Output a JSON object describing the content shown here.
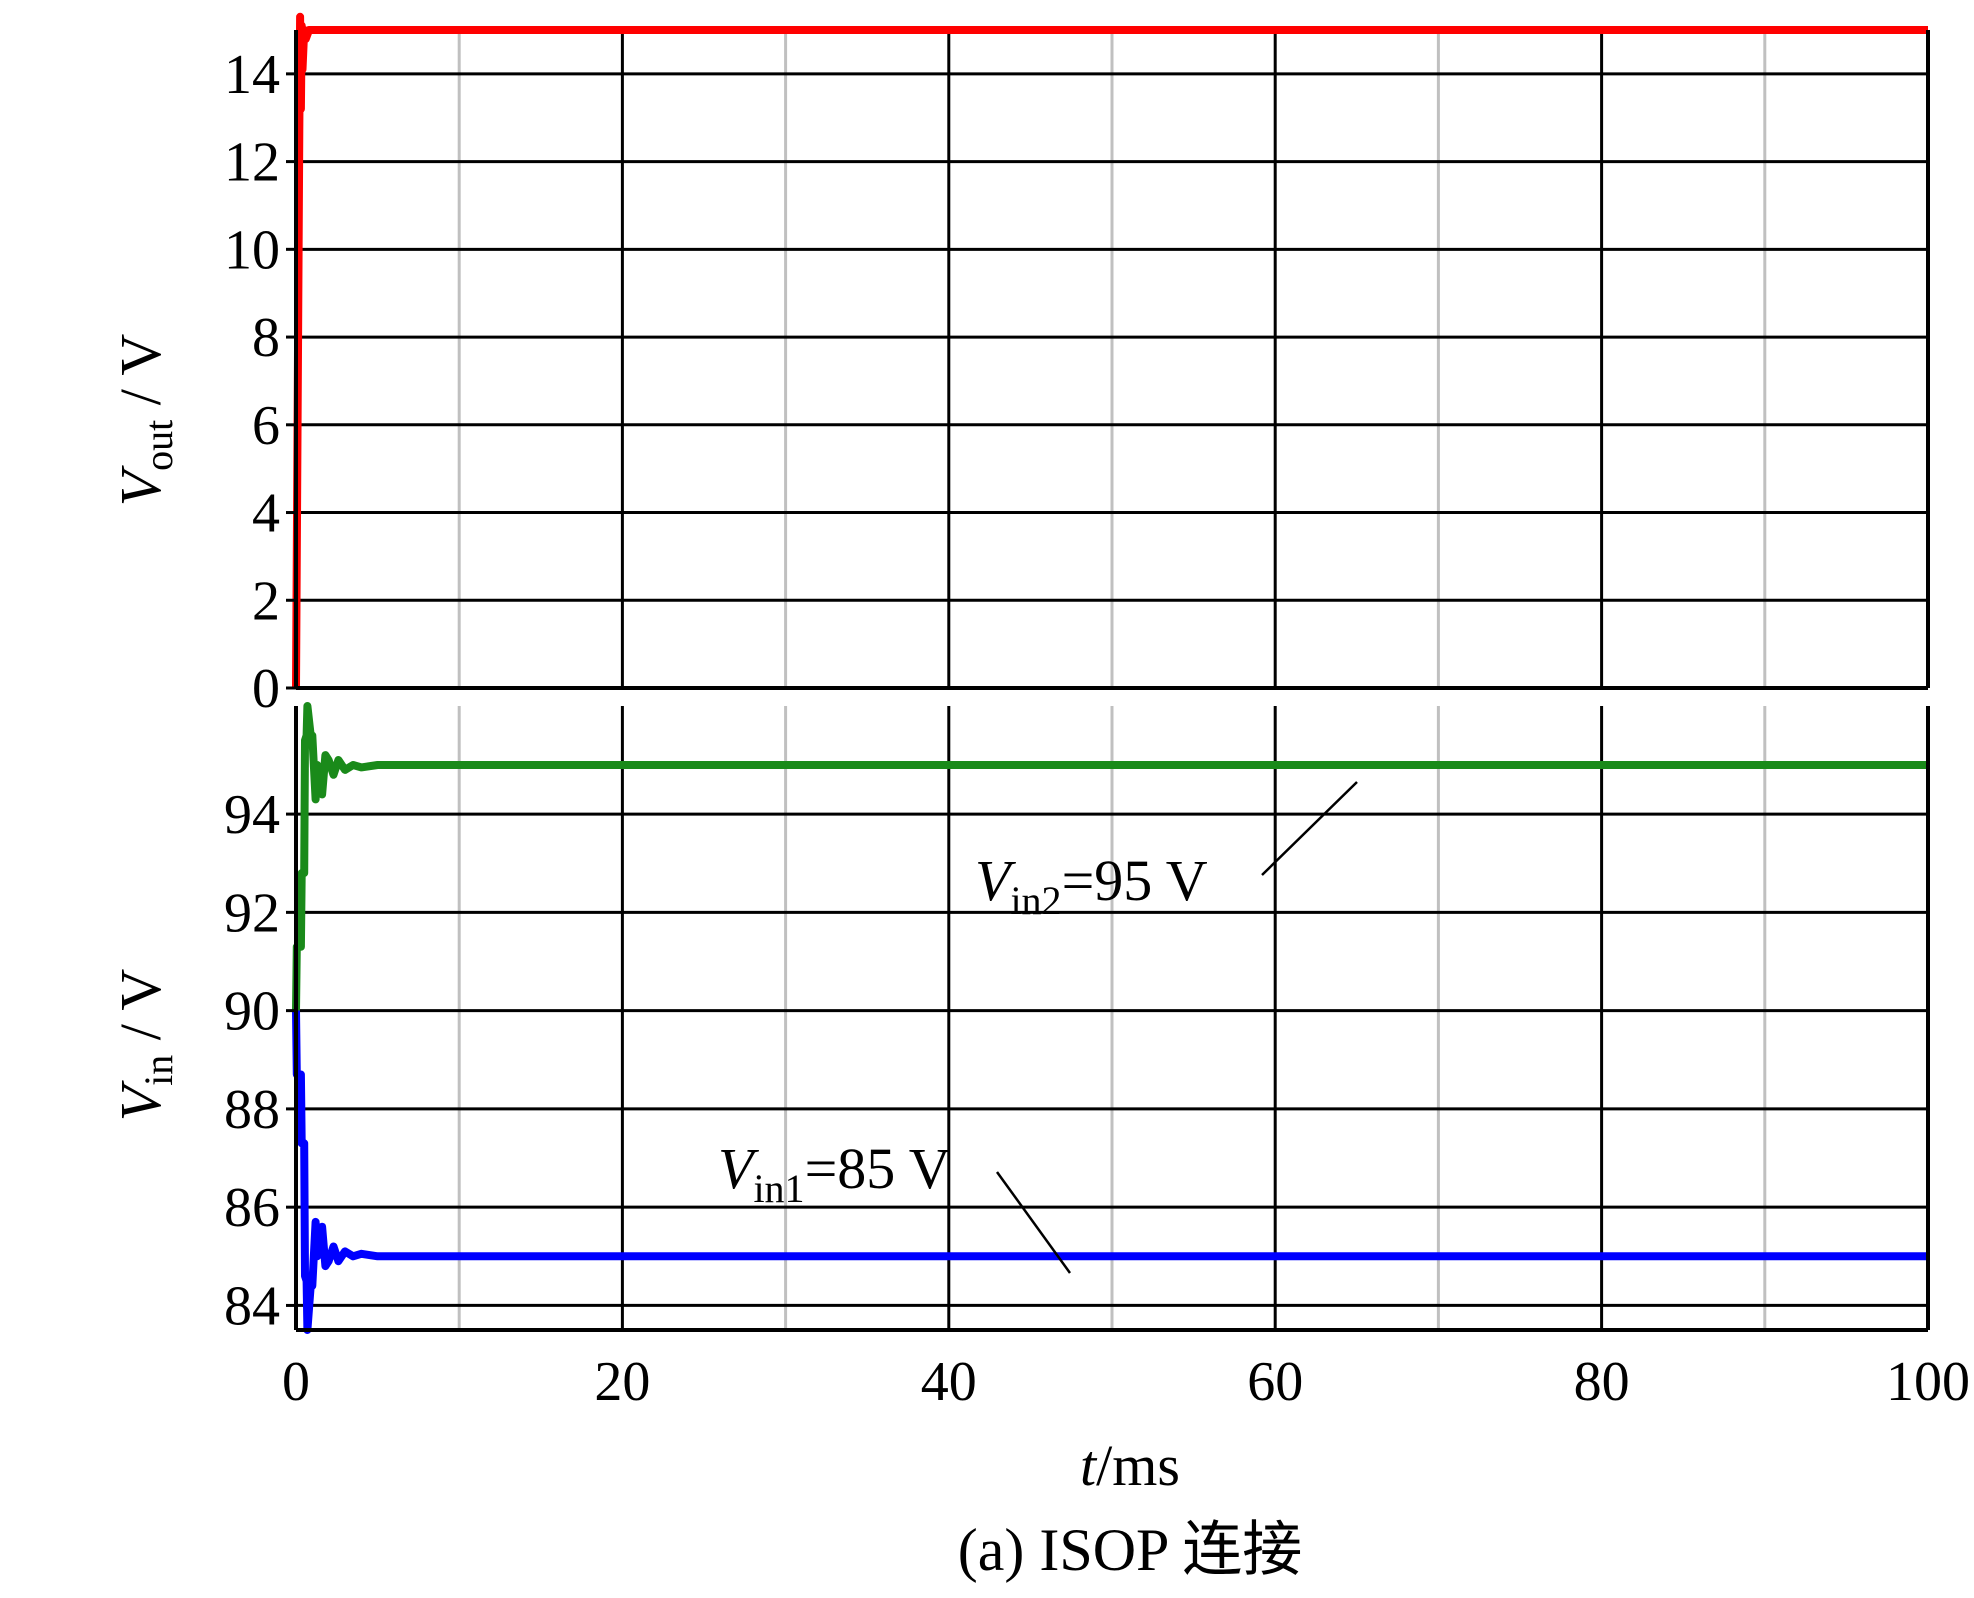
{
  "chart_data": [
    {
      "type": "line",
      "panel": "top",
      "ylabel": {
        "main": "V",
        "sub": "out",
        "unit": " / V"
      },
      "ylim": [
        0,
        15
      ],
      "yticks": [
        0,
        2,
        4,
        6,
        8,
        10,
        12,
        14
      ],
      "xlim": [
        0,
        100
      ],
      "xticks": [
        0,
        20,
        40,
        60,
        80,
        100
      ],
      "grid": true,
      "series": [
        {
          "color": "#ff0000",
          "x": [
            0,
            0.2,
            0.25,
            0.3,
            0.35,
            0.4,
            0.5,
            0.6,
            0.8,
            1.0,
            2,
            100
          ],
          "y": [
            0,
            12.7,
            15.3,
            13.2,
            15.1,
            14.1,
            15.0,
            14.8,
            15.0,
            15.0,
            15.0,
            15.0
          ]
        }
      ]
    },
    {
      "type": "line",
      "panel": "bottom",
      "ylabel": {
        "main": "V",
        "sub": "in",
        "unit": " / V"
      },
      "ylim": [
        83.5,
        96.2
      ],
      "yticks": [
        84,
        86,
        88,
        90,
        92,
        94
      ],
      "xlim": [
        0,
        100
      ],
      "xticks": [
        0,
        20,
        40,
        60,
        80,
        100
      ],
      "xlabel": {
        "main": "t",
        "unit": "/ms"
      },
      "grid": true,
      "series": [
        {
          "name": "Vin2",
          "color": "#1a8a1a",
          "x": [
            0,
            0.05,
            0.3,
            0.35,
            0.5,
            0.55,
            0.65,
            0.7,
            0.9,
            1.0,
            1.2,
            1.3,
            1.6,
            1.8,
            2.0,
            2.3,
            2.6,
            3.0,
            3.5,
            4,
            5,
            6,
            100
          ],
          "y": [
            90.0,
            91.3,
            91.3,
            92.8,
            92.8,
            95.5,
            95.6,
            96.2,
            95.6,
            95.6,
            94.3,
            95.0,
            94.4,
            95.2,
            95.1,
            94.8,
            95.1,
            94.9,
            95.0,
            94.95,
            95.0,
            95.0,
            95.0
          ]
        },
        {
          "name": "Vin1",
          "color": "#0000ff",
          "x": [
            0,
            0.05,
            0.3,
            0.35,
            0.5,
            0.55,
            0.65,
            0.7,
            0.9,
            1.0,
            1.2,
            1.3,
            1.6,
            1.8,
            2.0,
            2.3,
            2.6,
            3.0,
            3.5,
            4,
            5,
            6,
            100
          ],
          "y": [
            90.0,
            88.7,
            88.7,
            87.3,
            87.3,
            84.6,
            84.5,
            83.5,
            84.4,
            84.4,
            85.7,
            85.0,
            85.6,
            84.8,
            84.9,
            85.2,
            84.9,
            85.1,
            85.0,
            85.05,
            85.0,
            85.0,
            85.0
          ]
        }
      ]
    }
  ],
  "annotations": {
    "vin2": {
      "main": "V",
      "sub": "in2",
      "text": "=95 V"
    },
    "vin1": {
      "main": "V",
      "sub": "in1",
      "text": "=85 V"
    }
  },
  "caption": "(a) ISOP 连接"
}
